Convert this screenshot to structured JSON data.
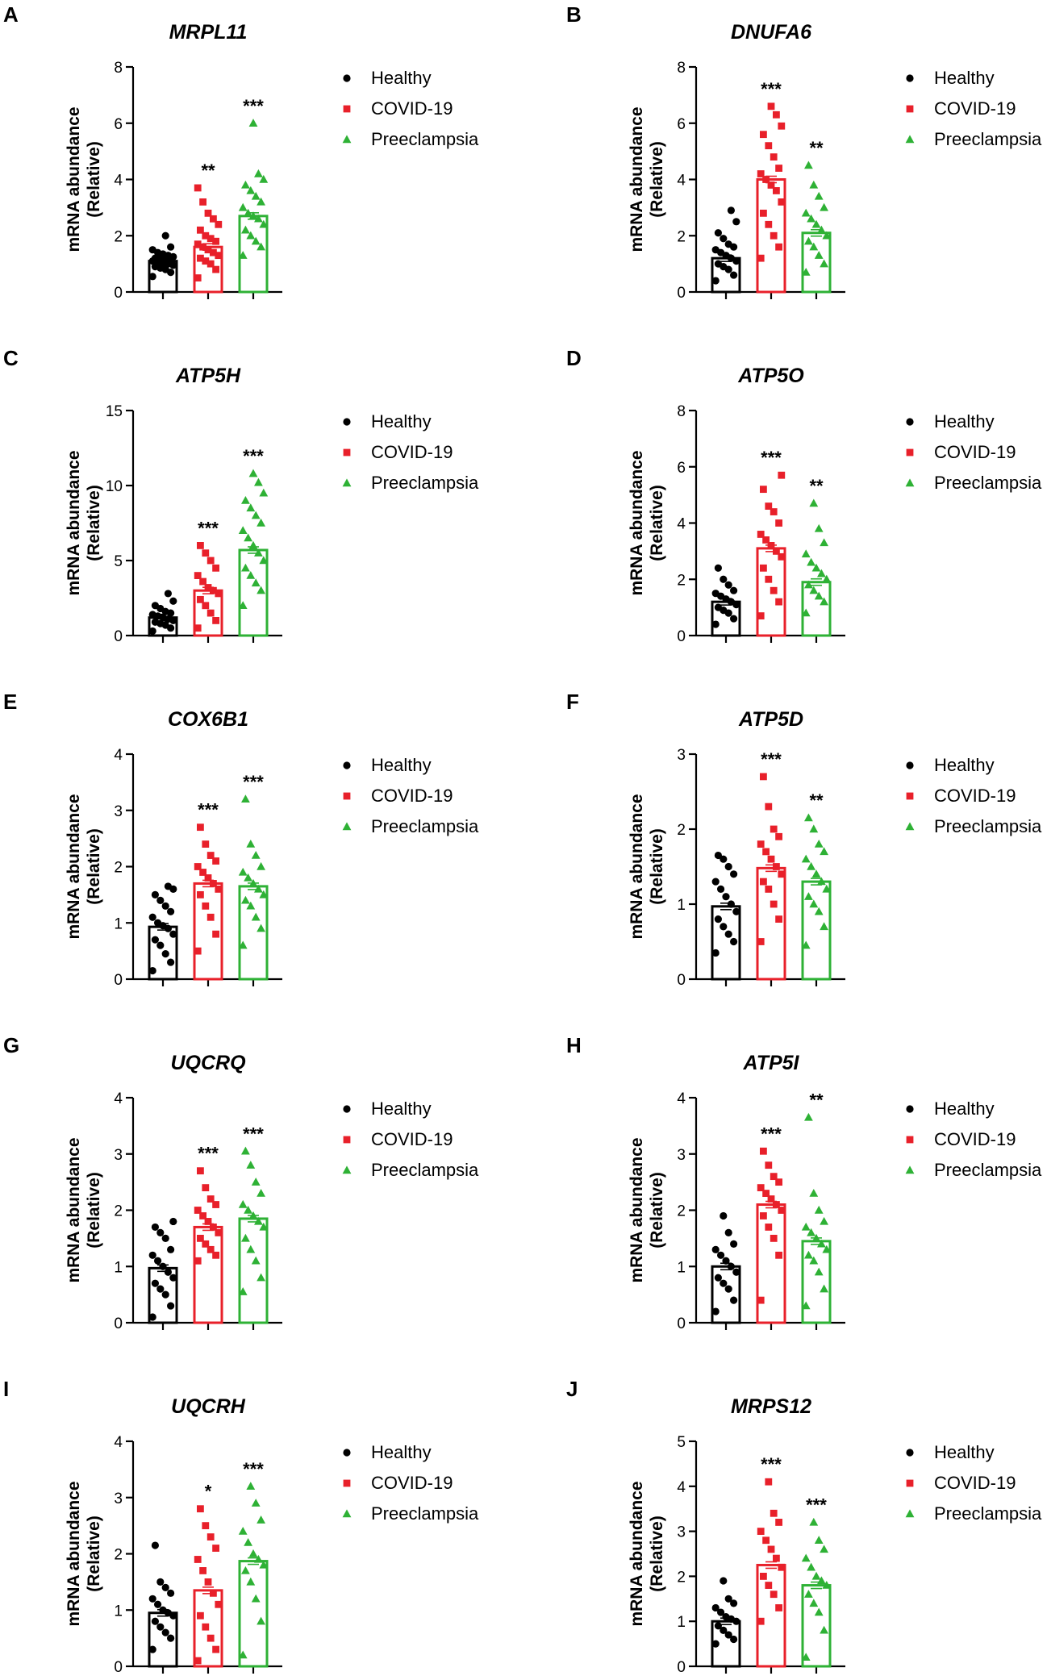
{
  "chart_data": [
    {
      "type": "bar",
      "panel": "A",
      "title": "MRPL11",
      "ylabel": "mRNA abundance",
      "ylabel2": "(Relative)",
      "xlabel": "",
      "ylim": [
        0,
        8
      ],
      "yticks": [
        0,
        2,
        4,
        6,
        8
      ],
      "categories": [
        "Healthy",
        "COVID-19",
        "Preeclampsia"
      ],
      "values": [
        1.1,
        1.6,
        2.7
      ],
      "significance": [
        "",
        "**",
        "***"
      ],
      "points": [
        [
          0.55,
          0.7,
          0.8,
          0.85,
          0.9,
          0.95,
          1.0,
          1.0,
          1.05,
          1.1,
          1.1,
          1.15,
          1.2,
          1.2,
          1.25,
          1.3,
          1.35,
          1.4,
          1.5,
          1.6,
          2.0
        ],
        [
          0.5,
          0.8,
          1.0,
          1.1,
          1.2,
          1.3,
          1.4,
          1.5,
          1.6,
          1.7,
          1.8,
          1.9,
          2.0,
          2.2,
          2.4,
          2.6,
          2.8,
          3.2,
          3.7
        ],
        [
          1.3,
          1.6,
          1.8,
          2.0,
          2.2,
          2.4,
          2.6,
          2.7,
          2.8,
          3.0,
          3.2,
          3.4,
          3.6,
          3.8,
          4.0,
          4.2,
          6.0
        ]
      ]
    },
    {
      "type": "bar",
      "panel": "B",
      "title": "DNUFA6",
      "ylabel": "mRNA abundance",
      "ylabel2": "(Relative)",
      "xlabel": "",
      "ylim": [
        0,
        8
      ],
      "yticks": [
        0,
        2,
        4,
        6,
        8
      ],
      "categories": [
        "Healthy",
        "COVID-19",
        "Preeclampsia"
      ],
      "values": [
        1.2,
        4.0,
        2.1
      ],
      "significance": [
        "",
        "***",
        "**"
      ],
      "points": [
        [
          0.4,
          0.6,
          0.8,
          0.9,
          1.0,
          1.1,
          1.2,
          1.3,
          1.4,
          1.5,
          1.6,
          1.7,
          1.9,
          2.1,
          2.5,
          2.9
        ],
        [
          1.2,
          1.6,
          2.0,
          2.4,
          2.8,
          3.2,
          3.6,
          3.8,
          4.0,
          4.2,
          4.4,
          4.8,
          5.2,
          5.6,
          5.9,
          6.3,
          6.6
        ],
        [
          0.7,
          1.0,
          1.3,
          1.6,
          1.8,
          2.0,
          2.2,
          2.4,
          2.6,
          2.8,
          3.0,
          3.4,
          3.8,
          4.5
        ]
      ]
    },
    {
      "type": "bar",
      "panel": "C",
      "title": "ATP5H",
      "ylabel": "mRNA abundance",
      "ylabel2": "(Relative)",
      "xlabel": "",
      "ylim": [
        0,
        15
      ],
      "yticks": [
        0,
        5,
        10,
        15
      ],
      "categories": [
        "Healthy",
        "COVID-19",
        "Preeclampsia"
      ],
      "values": [
        1.2,
        3.0,
        5.7
      ],
      "significance": [
        "",
        "***",
        "***"
      ],
      "points": [
        [
          0.3,
          0.5,
          0.7,
          0.8,
          0.9,
          1.0,
          1.1,
          1.2,
          1.3,
          1.4,
          1.5,
          1.6,
          1.8,
          2.0,
          2.3,
          2.8
        ],
        [
          0.5,
          1.0,
          1.5,
          2.0,
          2.4,
          2.8,
          3.0,
          3.2,
          3.6,
          4.0,
          4.5,
          5.0,
          5.5,
          6.0
        ],
        [
          2.0,
          3.0,
          3.5,
          4.0,
          4.5,
          5.0,
          5.5,
          6.0,
          6.5,
          7.0,
          7.5,
          8.0,
          8.5,
          9.0,
          9.5,
          10.2,
          10.8
        ]
      ]
    },
    {
      "type": "bar",
      "panel": "D",
      "title": "ATP5O",
      "ylabel": "mRNA abundance",
      "ylabel2": "(Relative)",
      "xlabel": "",
      "ylim": [
        0,
        8
      ],
      "yticks": [
        0,
        2,
        4,
        6,
        8
      ],
      "categories": [
        "Healthy",
        "COVID-19",
        "Preeclampsia"
      ],
      "values": [
        1.2,
        3.1,
        1.9
      ],
      "significance": [
        "",
        "***",
        "**"
      ],
      "points": [
        [
          0.4,
          0.6,
          0.8,
          0.9,
          1.0,
          1.1,
          1.2,
          1.3,
          1.4,
          1.5,
          1.6,
          1.8,
          2.0,
          2.4
        ],
        [
          0.7,
          1.2,
          1.6,
          2.0,
          2.4,
          2.8,
          3.0,
          3.2,
          3.4,
          3.6,
          4.0,
          4.4,
          4.6,
          5.2,
          5.7
        ],
        [
          0.8,
          1.2,
          1.4,
          1.6,
          1.8,
          2.0,
          2.2,
          2.4,
          2.6,
          2.9,
          3.3,
          3.8,
          4.7
        ]
      ]
    },
    {
      "type": "bar",
      "panel": "E",
      "title": "COX6B1",
      "ylabel": "mRNA abundance",
      "ylabel2": "(Relative)",
      "xlabel": "",
      "ylim": [
        0,
        4
      ],
      "yticks": [
        0,
        1,
        2,
        3,
        4
      ],
      "categories": [
        "Healthy",
        "COVID-19",
        "Preeclampsia"
      ],
      "values": [
        0.93,
        1.7,
        1.65
      ],
      "significance": [
        "",
        "***",
        "***"
      ],
      "points": [
        [
          0.15,
          0.3,
          0.45,
          0.6,
          0.7,
          0.8,
          0.9,
          0.95,
          1.0,
          1.1,
          1.2,
          1.3,
          1.4,
          1.5,
          1.6,
          1.65
        ],
        [
          0.5,
          0.8,
          1.1,
          1.3,
          1.5,
          1.6,
          1.7,
          1.8,
          1.9,
          2.0,
          2.1,
          2.2,
          2.4,
          2.7
        ],
        [
          0.6,
          0.9,
          1.1,
          1.3,
          1.4,
          1.5,
          1.6,
          1.7,
          1.8,
          1.9,
          2.0,
          2.2,
          2.4,
          3.2
        ]
      ]
    },
    {
      "type": "bar",
      "panel": "F",
      "title": "ATP5D",
      "ylabel": "mRNA abundance",
      "ylabel2": "(Relative)",
      "xlabel": "",
      "ylim": [
        0,
        3
      ],
      "yticks": [
        0,
        1,
        2,
        3
      ],
      "categories": [
        "Healthy",
        "COVID-19",
        "Preeclampsia"
      ],
      "values": [
        0.97,
        1.48,
        1.3
      ],
      "significance": [
        "",
        "***",
        "**"
      ],
      "points": [
        [
          0.35,
          0.5,
          0.6,
          0.7,
          0.8,
          0.9,
          1.0,
          1.1,
          1.2,
          1.3,
          1.4,
          1.5,
          1.6,
          1.65
        ],
        [
          0.5,
          0.8,
          1.0,
          1.2,
          1.3,
          1.4,
          1.5,
          1.6,
          1.7,
          1.8,
          1.9,
          2.0,
          2.3,
          2.7
        ],
        [
          0.45,
          0.7,
          0.9,
          1.0,
          1.1,
          1.2,
          1.3,
          1.4,
          1.5,
          1.6,
          1.7,
          1.8,
          2.0,
          2.15
        ]
      ]
    },
    {
      "type": "bar",
      "panel": "G",
      "title": "UQCRQ",
      "ylabel": "mRNA abundance",
      "ylabel2": "(Relative)",
      "xlabel": "",
      "ylim": [
        0,
        4
      ],
      "yticks": [
        0,
        1,
        2,
        3,
        4
      ],
      "categories": [
        "Healthy",
        "COVID-19",
        "Preeclampsia"
      ],
      "values": [
        0.97,
        1.7,
        1.85
      ],
      "significance": [
        "",
        "***",
        "***"
      ],
      "points": [
        [
          0.1,
          0.3,
          0.5,
          0.6,
          0.7,
          0.8,
          0.9,
          1.0,
          1.1,
          1.2,
          1.3,
          1.5,
          1.6,
          1.7,
          1.8
        ],
        [
          1.1,
          1.2,
          1.3,
          1.4,
          1.5,
          1.6,
          1.7,
          1.8,
          1.9,
          2.0,
          2.1,
          2.2,
          2.4,
          2.7
        ],
        [
          0.55,
          0.8,
          1.1,
          1.3,
          1.5,
          1.7,
          1.8,
          1.9,
          2.0,
          2.1,
          2.3,
          2.5,
          2.8,
          3.05
        ]
      ]
    },
    {
      "type": "bar",
      "panel": "H",
      "title": "ATP5I",
      "ylabel": "mRNA abundance",
      "ylabel2": "(Relative)",
      "xlabel": "",
      "ylim": [
        0,
        4
      ],
      "yticks": [
        0,
        1,
        2,
        3,
        4
      ],
      "categories": [
        "Healthy",
        "COVID-19",
        "Preeclampsia"
      ],
      "values": [
        1.0,
        2.1,
        1.45
      ],
      "significance": [
        "",
        "***",
        "**"
      ],
      "points": [
        [
          0.2,
          0.4,
          0.6,
          0.7,
          0.8,
          0.9,
          1.0,
          1.1,
          1.2,
          1.3,
          1.4,
          1.6,
          1.9
        ],
        [
          0.4,
          1.2,
          1.5,
          1.7,
          1.9,
          2.0,
          2.1,
          2.2,
          2.3,
          2.4,
          2.5,
          2.6,
          2.8,
          3.05
        ],
        [
          0.3,
          0.6,
          0.9,
          1.1,
          1.2,
          1.3,
          1.4,
          1.5,
          1.6,
          1.7,
          1.8,
          2.0,
          2.3,
          3.65
        ]
      ]
    },
    {
      "type": "bar",
      "panel": "I",
      "title": "UQCRH",
      "ylabel": "mRNA abundance",
      "ylabel2": "(Relative)",
      "xlabel": "",
      "ylim": [
        0,
        4
      ],
      "yticks": [
        0,
        1,
        2,
        3,
        4
      ],
      "categories": [
        "Healthy",
        "COVID-19",
        "Preeclampsia"
      ],
      "values": [
        0.95,
        1.35,
        1.87
      ],
      "significance": [
        "",
        "*",
        "***"
      ],
      "points": [
        [
          0.3,
          0.5,
          0.6,
          0.7,
          0.8,
          0.9,
          0.95,
          1.0,
          1.1,
          1.2,
          1.3,
          1.4,
          1.5,
          2.15
        ],
        [
          0.1,
          0.3,
          0.5,
          0.7,
          0.9,
          1.1,
          1.3,
          1.5,
          1.7,
          1.9,
          2.1,
          2.3,
          2.5,
          2.8
        ],
        [
          0.2,
          0.8,
          1.2,
          1.5,
          1.7,
          1.8,
          1.9,
          2.0,
          2.2,
          2.4,
          2.6,
          2.9,
          3.2
        ]
      ]
    },
    {
      "type": "bar",
      "panel": "J",
      "title": "MRPS12",
      "ylabel": "mRNA abundance",
      "ylabel2": "(Relative)",
      "xlabel": "",
      "ylim": [
        0,
        5
      ],
      "yticks": [
        0,
        1,
        2,
        3,
        4,
        5
      ],
      "categories": [
        "Healthy",
        "COVID-19",
        "Preeclampsia"
      ],
      "values": [
        1.0,
        2.25,
        1.8
      ],
      "significance": [
        "",
        "***",
        "***"
      ],
      "points": [
        [
          0.5,
          0.6,
          0.7,
          0.8,
          0.9,
          1.0,
          1.05,
          1.1,
          1.2,
          1.3,
          1.4,
          1.5,
          1.9
        ],
        [
          1.0,
          1.3,
          1.6,
          1.8,
          2.0,
          2.2,
          2.4,
          2.6,
          2.8,
          3.0,
          3.2,
          3.4,
          4.1
        ],
        [
          0.2,
          0.8,
          1.2,
          1.4,
          1.6,
          1.8,
          1.9,
          2.0,
          2.2,
          2.4,
          2.6,
          2.8,
          3.2
        ]
      ]
    }
  ],
  "legend": {
    "items": [
      {
        "label": "Healthy",
        "color": "#000000",
        "marker": "circle"
      },
      {
        "label": "COVID-19",
        "color": "#e8202a",
        "marker": "square"
      },
      {
        "label": "Preeclampsia",
        "color": "#2eb135",
        "marker": "triangle"
      }
    ]
  },
  "colors": {
    "healthy": "#000000",
    "covid": "#e8202a",
    "preeclampsia": "#2eb135",
    "axis": "#000000"
  }
}
